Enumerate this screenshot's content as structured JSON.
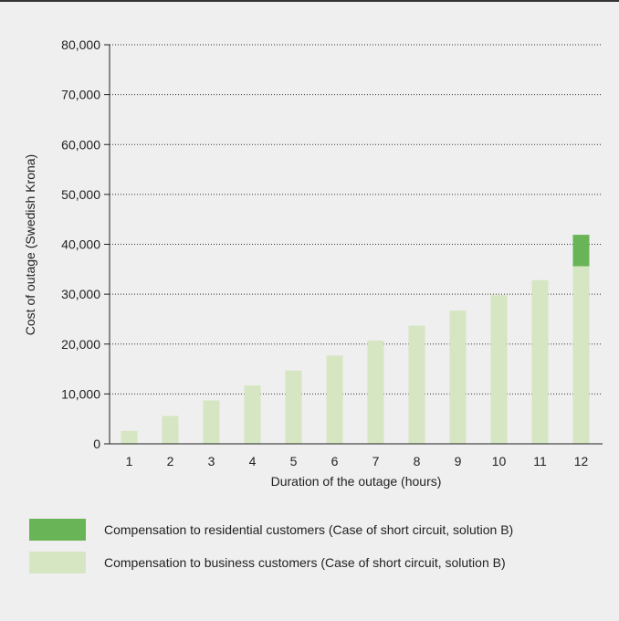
{
  "chart_data": {
    "type": "bar",
    "stacked": true,
    "categories": [
      "1",
      "2",
      "3",
      "4",
      "5",
      "6",
      "7",
      "8",
      "9",
      "10",
      "11",
      "12"
    ],
    "series": [
      {
        "name": "Compensation to business customers (Case of short circuit, solution B)",
        "color": "#d6e6c2",
        "values": [
          2600,
          5600,
          8700,
          11700,
          14700,
          17700,
          20700,
          23700,
          26700,
          29800,
          32800,
          35600
        ]
      },
      {
        "name": "Compensation to residential customers (Case of short circuit, solution B)",
        "color": "#6ab458",
        "values": [
          0,
          0,
          0,
          0,
          0,
          0,
          0,
          0,
          0,
          0,
          0,
          6300
        ]
      }
    ],
    "xlabel": "Duration of the outage (hours)",
    "ylabel": "Cost of outage (Swedish Krona)",
    "ylim": [
      0,
      80000
    ],
    "yticks": [
      0,
      10000,
      20000,
      30000,
      40000,
      50000,
      60000,
      70000,
      80000
    ],
    "ytick_labels": [
      "0",
      "10,000",
      "20,000",
      "30,000",
      "40,000",
      "50,000",
      "60,000",
      "70,000",
      "80,000"
    ],
    "grid": "horizontal-dotted",
    "legend_position": "bottom"
  }
}
